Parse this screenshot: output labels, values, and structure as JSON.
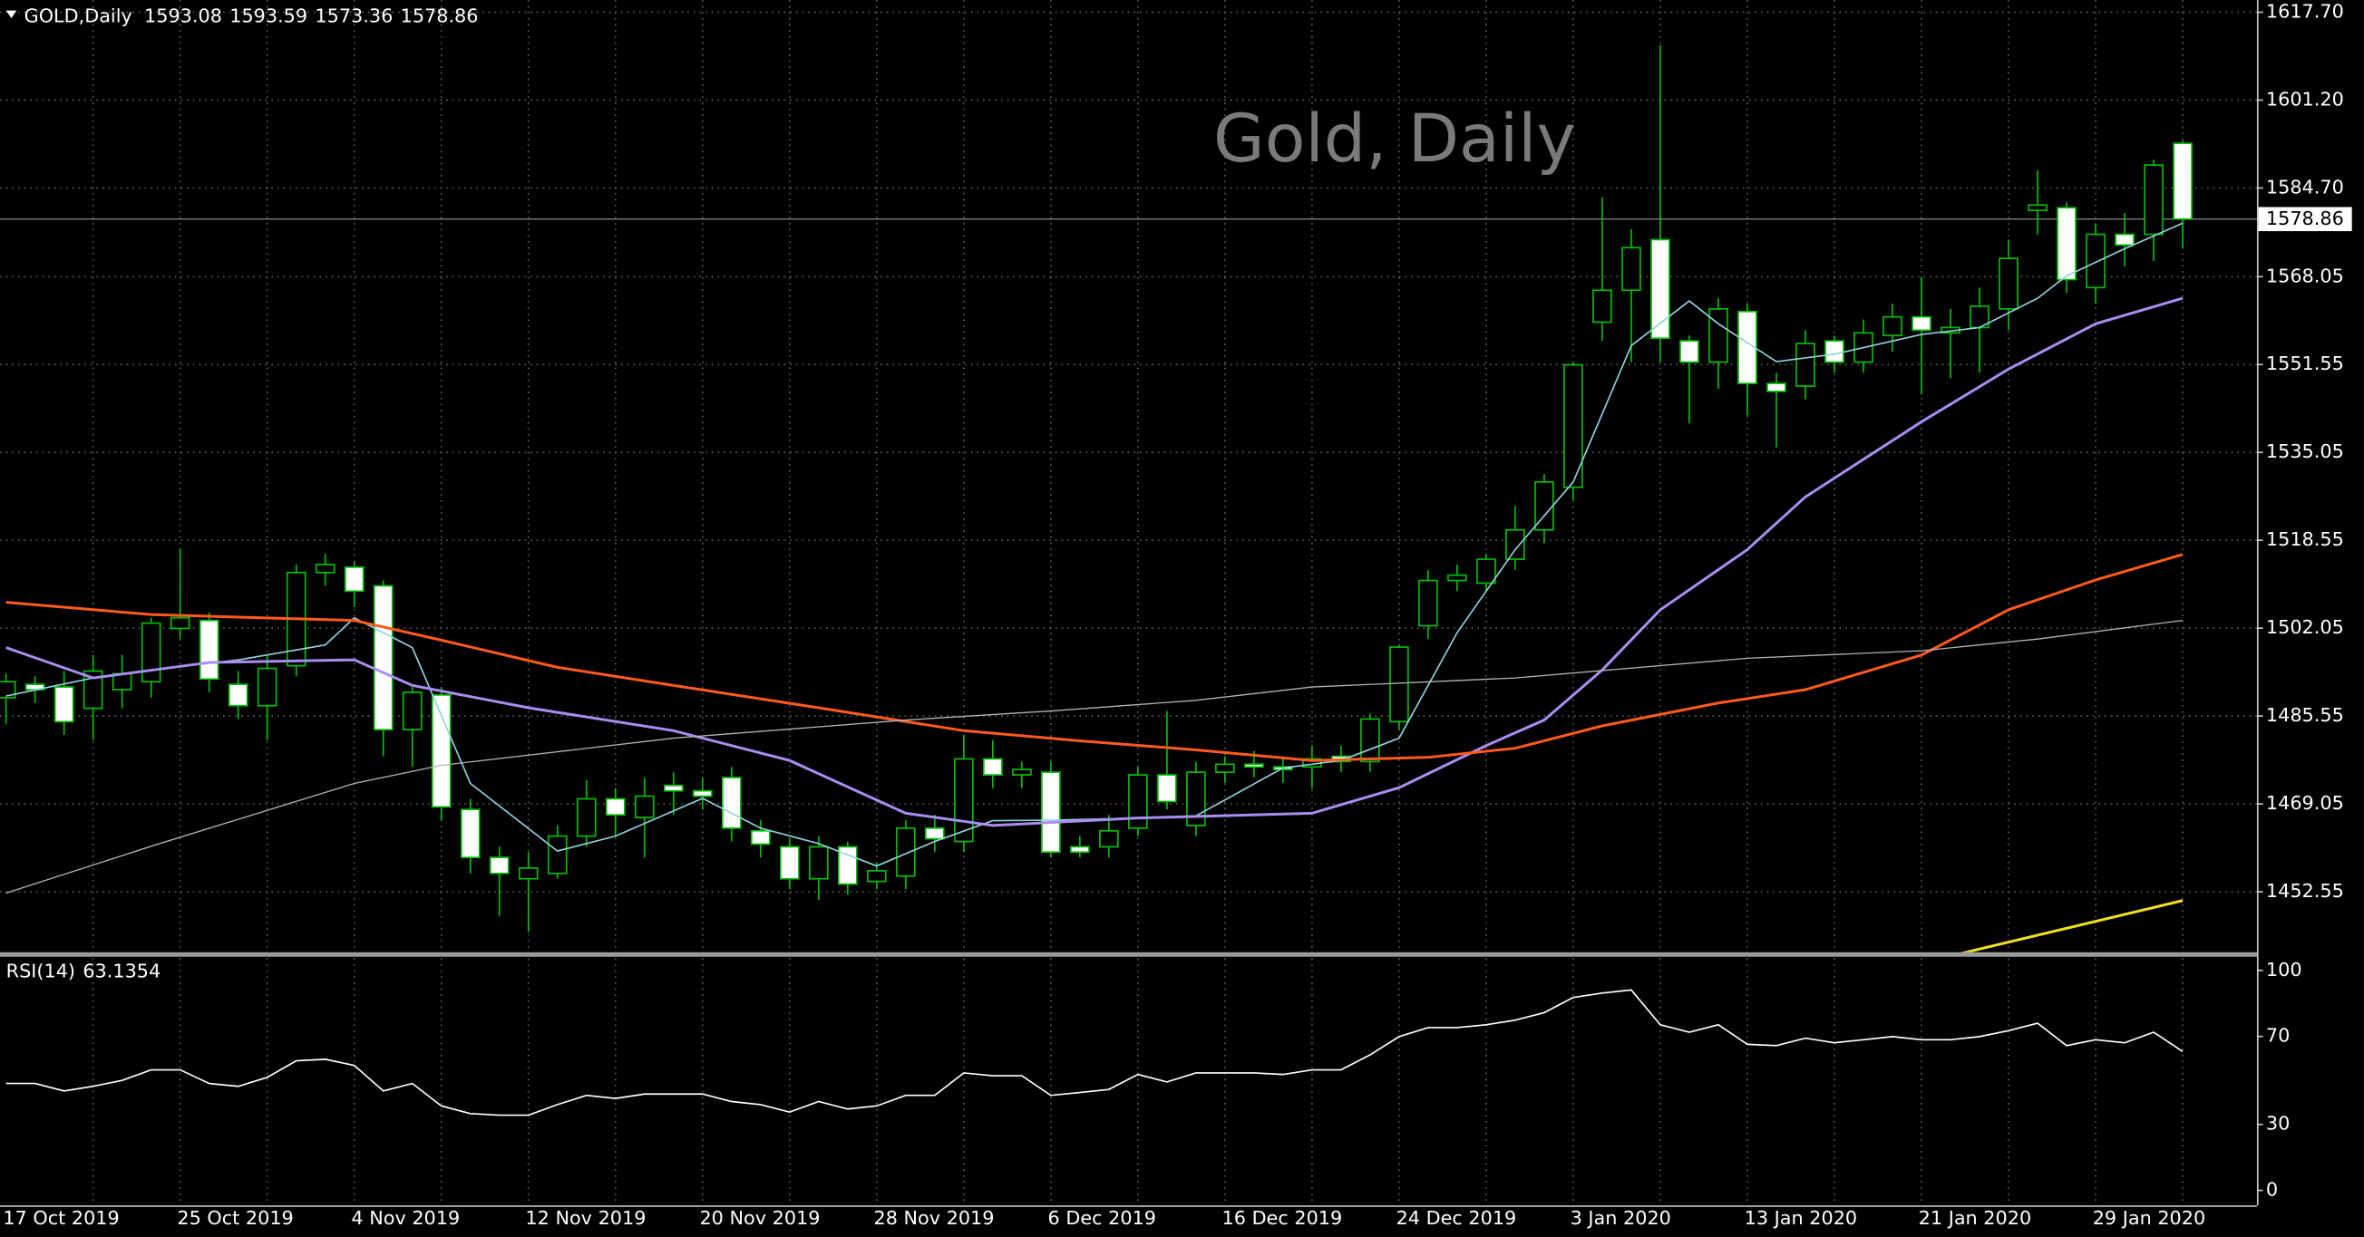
{
  "chart_data": [
    {
      "type": "candlestick",
      "title": "Gold, Daily",
      "symbol": "GOLD,Daily",
      "categories": [
        "17 Oct 2019",
        null,
        null,
        null,
        null,
        null,
        "25 Oct 2019",
        null,
        null,
        null,
        null,
        null,
        "4 Nov 2019",
        null,
        null,
        null,
        null,
        null,
        "12 Nov 2019",
        null,
        null,
        null,
        null,
        null,
        "20 Nov 2019",
        null,
        null,
        null,
        null,
        null,
        "28 Nov 2019",
        null,
        null,
        null,
        null,
        null,
        "6 Dec 2019",
        null,
        null,
        null,
        null,
        null,
        "16 Dec 2019",
        null,
        null,
        null,
        null,
        null,
        "24 Dec 2019",
        null,
        null,
        null,
        null,
        null,
        "3 Jan 2020",
        null,
        null,
        null,
        null,
        null,
        "13 Jan 2020",
        null,
        null,
        null,
        null,
        null,
        "21 Jan 2020",
        null,
        null,
        null,
        null,
        null,
        "29 Jan 2020",
        null,
        null,
        null
      ],
      "open": [
        1489,
        1491.5,
        1491,
        1487,
        1490.5,
        1492,
        1502,
        1503.5,
        1491.5,
        1487.5,
        1495,
        1512.5,
        1513.5,
        1510,
        1483,
        1489.5,
        1468,
        1459,
        1455,
        1456,
        1463,
        1470,
        1466.5,
        1472.5,
        1471.5,
        1474,
        1464,
        1461,
        1455,
        1461,
        1454.5,
        1455.5,
        1464.5,
        1462,
        1477.5,
        1474.5,
        1475,
        1461,
        1461,
        1464.5,
        1474.5,
        1465,
        1475,
        1476.5,
        1476,
        1476,
        1478,
        1477,
        1484.5,
        1502.5,
        1511,
        1510.5,
        1515,
        1520.5,
        1528.5,
        1559.5,
        1565.5,
        1575,
        1556,
        1552,
        1561.5,
        1548,
        1547.5,
        1556,
        1552,
        1557,
        1560.5,
        1557.5,
        1558.5,
        1562,
        1580.5,
        1581,
        1566,
        1576,
        1576,
        1593.08
      ],
      "high": [
        1493.5,
        1493,
        1494,
        1497,
        1497,
        1504,
        1517,
        1505,
        1494,
        1497,
        1514,
        1516,
        1514.5,
        1511,
        1491,
        1491,
        1470,
        1461,
        1460,
        1465,
        1473.5,
        1472,
        1474,
        1475,
        1474,
        1476,
        1466,
        1462.5,
        1463,
        1462,
        1458,
        1466,
        1467,
        1482,
        1481,
        1477,
        1477,
        1463,
        1467,
        1476,
        1486.5,
        1477,
        1478,
        1479,
        1478,
        1480,
        1480,
        1486,
        1499,
        1513,
        1514,
        1516,
        1525,
        1531,
        1552,
        1583,
        1577,
        1611.5,
        1557,
        1564,
        1563,
        1550,
        1558,
        1557,
        1560,
        1563,
        1568,
        1562,
        1566,
        1575,
        1588,
        1582,
        1578,
        1580,
        1590,
        1593.59
      ],
      "low": [
        1484,
        1488,
        1482,
        1481,
        1487,
        1489,
        1500,
        1490,
        1485,
        1481,
        1493,
        1510,
        1506,
        1478,
        1476,
        1466,
        1456,
        1448,
        1445,
        1455,
        1461,
        1463,
        1459,
        1467,
        1468,
        1462,
        1459,
        1453,
        1451,
        1452,
        1453,
        1453,
        1460,
        1460,
        1472,
        1472,
        1459,
        1459,
        1459,
        1463,
        1468,
        1463,
        1473,
        1474,
        1473,
        1472,
        1475,
        1475,
        1483,
        1500,
        1509,
        1509,
        1513,
        1518,
        1526,
        1556,
        1552,
        1552,
        1540.5,
        1547,
        1542,
        1536,
        1545,
        1550,
        1550,
        1554,
        1546,
        1549,
        1550,
        1558,
        1576,
        1565,
        1563,
        1570,
        1571,
        1573.36
      ],
      "close": [
        1492,
        1490.5,
        1484.5,
        1494,
        1493.5,
        1503,
        1504,
        1492.5,
        1487.5,
        1494.5,
        1512.5,
        1514,
        1509,
        1483,
        1490,
        1468.5,
        1459,
        1456,
        1457,
        1463,
        1470,
        1467,
        1470.5,
        1471.5,
        1470.5,
        1464.5,
        1461.5,
        1455,
        1461,
        1454,
        1456.5,
        1464.5,
        1462.5,
        1477.5,
        1474.5,
        1475.5,
        1460,
        1460,
        1464,
        1474.5,
        1469.5,
        1475,
        1476.5,
        1476,
        1475.5,
        1477.5,
        1477,
        1485,
        1498.5,
        1511,
        1512,
        1515,
        1520.5,
        1529.5,
        1551.5,
        1565.5,
        1573.5,
        1556.5,
        1552,
        1562,
        1548,
        1546.5,
        1555.5,
        1552,
        1557.5,
        1560.5,
        1558,
        1558.5,
        1562.5,
        1571.5,
        1581.5,
        1567.5,
        1576,
        1574,
        1589,
        1578.86
      ],
      "up_color": "#000000",
      "down_color": "#ffffff",
      "wick_color": "#00c000",
      "ylim": [
        1441.2,
        1620.0
      ],
      "yticks": [
        {
          "value": 1617.7,
          "label": "1617.70"
        },
        {
          "value": 1601.2,
          "label": "1601.20"
        },
        {
          "value": 1584.7,
          "label": "1584.70"
        },
        1568.05,
        1551.55,
        1535.05,
        1518.55,
        1502.05,
        1485.55,
        1469.05,
        1452.55
      ],
      "grid": true,
      "series": [
        {
          "color": "#8fd3e0",
          "x": [
            0,
            3,
            5,
            8,
            11,
            12,
            14,
            16,
            19,
            21,
            24,
            26,
            28,
            30,
            32,
            34,
            36,
            39,
            41,
            44,
            46,
            48,
            50,
            52,
            54,
            56,
            58,
            59,
            61,
            63,
            66,
            68,
            70,
            71,
            73,
            75
          ],
          "values": [
            1489.3,
            1492.7,
            1494.2,
            1496.1,
            1498.9,
            1504,
            1498.4,
            1472.9,
            1460.2,
            1463,
            1470.1,
            1464.5,
            1461.6,
            1457.4,
            1462,
            1465.9,
            1466,
            1466.4,
            1466.8,
            1475.8,
            1477.2,
            1481.4,
            1501.2,
            1516.8,
            1529.5,
            1555.1,
            1563.5,
            1559.2,
            1552.1,
            1553.5,
            1557.2,
            1558.5,
            1564,
            1568.2,
            1573.3,
            1578.1
          ]
        },
        {
          "color": "#a98df0",
          "x": [
            0,
            3,
            7,
            12,
            14,
            18,
            23,
            27,
            31,
            34,
            39,
            45,
            48,
            51,
            53,
            55,
            57,
            60,
            62,
            66,
            69,
            72,
            75
          ],
          "values": [
            1498.4,
            1492.7,
            1495.6,
            1496.1,
            1491.3,
            1487.1,
            1482.8,
            1477.2,
            1467.3,
            1465,
            1466.4,
            1467.3,
            1472.1,
            1480,
            1484.8,
            1494.2,
            1505.5,
            1516.8,
            1526.7,
            1540.8,
            1550.7,
            1559.2,
            1564
          ]
        },
        {
          "color": "#ff5a1e",
          "x": [
            0,
            5,
            12,
            15,
            19,
            23,
            28,
            33,
            37,
            41,
            45,
            49,
            52,
            55,
            59,
            62,
            66,
            69,
            72,
            75
          ],
          "values": [
            1506.9,
            1504.6,
            1503.5,
            1499.8,
            1494.7,
            1491.3,
            1487.1,
            1482.8,
            1480.9,
            1479.2,
            1477.2,
            1477.8,
            1479.5,
            1483.7,
            1488,
            1490.5,
            1497,
            1505.5,
            1511.1,
            1515.9
          ]
        },
        {
          "color": "#b4b4b4",
          "x": [
            0,
            5,
            12,
            15,
            23,
            31,
            36,
            41,
            45,
            52,
            60,
            66,
            70,
            75
          ],
          "values": [
            1452.3,
            1461.1,
            1472.9,
            1476.3,
            1481.4,
            1484.8,
            1486.5,
            1488.5,
            1491,
            1492.7,
            1496.4,
            1497.8,
            1500,
            1503.5
          ]
        },
        {
          "color": "#f0e020",
          "x": [
            67,
            75
          ],
          "values": [
            1440.5,
            1450.9
          ]
        }
      ]
    },
    {
      "type": "line",
      "title": "RSI(14)",
      "color": "#ffffff",
      "values": [
        48.6,
        48.6,
        45.2,
        47.3,
        50.0,
        54.8,
        54.8,
        48.6,
        47.3,
        51.4,
        58.9,
        59.6,
        56.8,
        45.2,
        48.6,
        38.4,
        34.9,
        34.2,
        34.2,
        39.0,
        43.2,
        41.8,
        43.8,
        43.8,
        43.8,
        40.4,
        39.0,
        35.6,
        40.4,
        37.0,
        38.4,
        43.2,
        43.2,
        53.4,
        52.1,
        52.1,
        43.2,
        44.5,
        45.9,
        52.7,
        49.3,
        53.4,
        53.4,
        53.4,
        52.7,
        54.8,
        54.8,
        61.6,
        69.9,
        74.0,
        74.0,
        75.3,
        77.4,
        80.8,
        87.7,
        89.7,
        91.1,
        75.3,
        71.9,
        75.3,
        66.4,
        65.8,
        69.2,
        67.1,
        68.5,
        69.9,
        68.5,
        68.5,
        69.9,
        72.6,
        76.0,
        65.8,
        68.5,
        67.1,
        71.9,
        63.1354
      ],
      "ylim": [
        -6.8,
        106.2
      ],
      "yticks": [
        100,
        70,
        30,
        0
      ]
    }
  ]
}
